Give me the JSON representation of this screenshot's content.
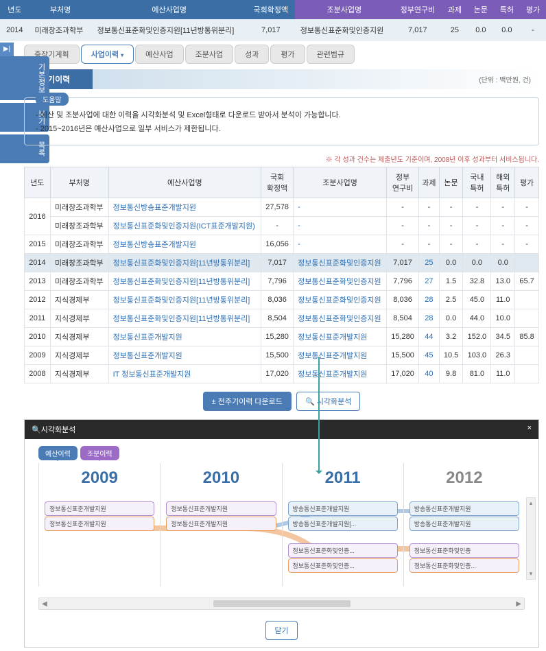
{
  "header": {
    "cols": [
      "년도",
      "부처명",
      "예산사업명",
      "국회확정액",
      "조분사업명",
      "정부연구비",
      "과제",
      "논문",
      "특허",
      "평가"
    ],
    "row": {
      "year": "2014",
      "dept": "미래창조과학부",
      "budget_project": "정보통신표준화및인증지원[11년방통위분리]",
      "confirmed": "7,017",
      "sub_project": "정보통신표준화및인증지원",
      "gov_cost": "7,017",
      "tasks": "25",
      "papers": "0.0",
      "patents": "0.0",
      "eval": "-"
    }
  },
  "side_tabs": {
    "toggle": "▶|",
    "info": "기본정보",
    "view": "보기",
    "list": "목록"
  },
  "top_tabs": {
    "t1": "중장기계획",
    "t2": "사업이력",
    "t3": "예산사업",
    "t4": "조분사업",
    "t5": "성과",
    "t6": "평가",
    "t7": "관련법규"
  },
  "section": {
    "title": "전주기이력",
    "unit": "(단위 : 백만원, 건)"
  },
  "help": {
    "label": "도움말",
    "line1": "- 예산 및 조분사업에 대한 이력을 시각화분석 및 Excel형태로 다운로드 받아서 분석이 가능합니다.",
    "line2": "- 2015~2016년은 예산사업으로 일부 서비스가 제한됩니다."
  },
  "note": "※ 각 성과 건수는 제출년도 기준이며, 2008년 이후 성과부터 서비스됩니다.",
  "table": {
    "cols": [
      "년도",
      "부처명",
      "예산사업명",
      "국회\n확정액",
      "조분사업명",
      "정부\n연구비",
      "과제",
      "논문",
      "국내\n특허",
      "해외\n특허",
      "평가"
    ],
    "rows": [
      {
        "year": "2016",
        "dept": "미래창조과학부",
        "bp": "정보통신방송표준개발지원",
        "conf": "27,578",
        "sp": "-",
        "gov": "-",
        "task": "-",
        "paper": "-",
        "dp": "-",
        "fp": "-",
        "eval": "-",
        "rowspan": 2
      },
      {
        "year": "",
        "dept": "미래창조과학부",
        "bp": "정보통신표준화및인증지원(ICT표준개발지원)",
        "conf": "-",
        "sp": "-",
        "gov": "-",
        "task": "-",
        "paper": "-",
        "dp": "-",
        "fp": "-",
        "eval": "-"
      },
      {
        "year": "2015",
        "dept": "미래창조과학부",
        "bp": "정보통신방송표준개발지원",
        "conf": "16,056",
        "sp": "-",
        "gov": "-",
        "task": "-",
        "paper": "-",
        "dp": "-",
        "fp": "-",
        "eval": "-"
      },
      {
        "year": "2014",
        "dept": "미래창조과학부",
        "bp": "정보통신표준화및인증지원[11년방통위분리]",
        "conf": "7,017",
        "sp": "정보통신표준화및인증지원",
        "gov": "7,017",
        "task": "25",
        "paper": "0.0",
        "dp": "0.0",
        "fp": "0.0",
        "eval": "",
        "hl": true
      },
      {
        "year": "2013",
        "dept": "미래창조과학부",
        "bp": "정보통신표준화및인증지원[11년방통위분리]",
        "conf": "7,796",
        "sp": "정보통신표준화및인증지원",
        "gov": "7,796",
        "task": "27",
        "paper": "1.5",
        "dp": "32.8",
        "fp": "13.0",
        "eval": "65.7"
      },
      {
        "year": "2012",
        "dept": "지식경제부",
        "bp": "정보통신표준화및인증지원[11년방통위분리]",
        "conf": "8,036",
        "sp": "정보통신표준화및인증지원",
        "gov": "8,036",
        "task": "28",
        "paper": "2.5",
        "dp": "45.0",
        "fp": "11.0",
        "eval": ""
      },
      {
        "year": "2011",
        "dept": "지식경제부",
        "bp": "정보통신표준화및인증지원[11년방통위분리]",
        "conf": "8,504",
        "sp": "정보통신표준화및인증지원",
        "gov": "8,504",
        "task": "28",
        "paper": "0.0",
        "dp": "44.0",
        "fp": "10.0",
        "eval": ""
      },
      {
        "year": "2010",
        "dept": "지식경제부",
        "bp": "정보통신표준개발지원",
        "conf": "15,280",
        "sp": "정보통신표준개발지원",
        "gov": "15,280",
        "task": "44",
        "paper": "3.2",
        "dp": "152.0",
        "fp": "34.5",
        "eval": "85.8"
      },
      {
        "year": "2009",
        "dept": "지식경제부",
        "bp": "정보통신표준개발지원",
        "conf": "15,500",
        "sp": "정보통신표준개발지원",
        "gov": "15,500",
        "task": "45",
        "paper": "10.5",
        "dp": "103.0",
        "fp": "26.3",
        "eval": ""
      },
      {
        "year": "2008",
        "dept": "지식경제부",
        "bp": "IT 정보통신표준개발지원",
        "conf": "17,020",
        "sp": "정보통신표준개발지원",
        "gov": "17,020",
        "task": "40",
        "paper": "9.8",
        "dp": "81.0",
        "fp": "11.0",
        "eval": ""
      }
    ]
  },
  "buttons": {
    "download": "± 전주기이력 다운로드",
    "viz": "시각화분석",
    "close": "닫기"
  },
  "viz": {
    "title": "시각화분석",
    "close": "×",
    "toggle_budget": "예산이력",
    "toggle_sub": "조분이력",
    "years": {
      "y2009": "2009",
      "y2010": "2010",
      "y2011": "2011",
      "y2012": "2012"
    },
    "nodes": {
      "n2009a": "정보통신표준개발지원",
      "n2009b": "정보통신표준개발지원",
      "n2010a": "정보통신표준개발지원",
      "n2010b": "정보통신표준개발지원",
      "n2011a": "방송통신표준개발지원",
      "n2011b": "방송통신표준개발지원[...",
      "n2011c": "정보통신표준화및인증...",
      "n2011d": "정보통신표준화및인증...",
      "n2012a": "방송통신표준개발지원",
      "n2012b": "방송통신표준개발지원",
      "n2012c": "정보통신표준화및인증",
      "n2012d": "정보통신표준화및인증..."
    }
  },
  "colors": {
    "blue_header": "#3a6ea5",
    "purple_header": "#7b5cb8",
    "link": "#2a6eb5",
    "orange": "#e8a060",
    "teal": "#3aa0a0"
  }
}
